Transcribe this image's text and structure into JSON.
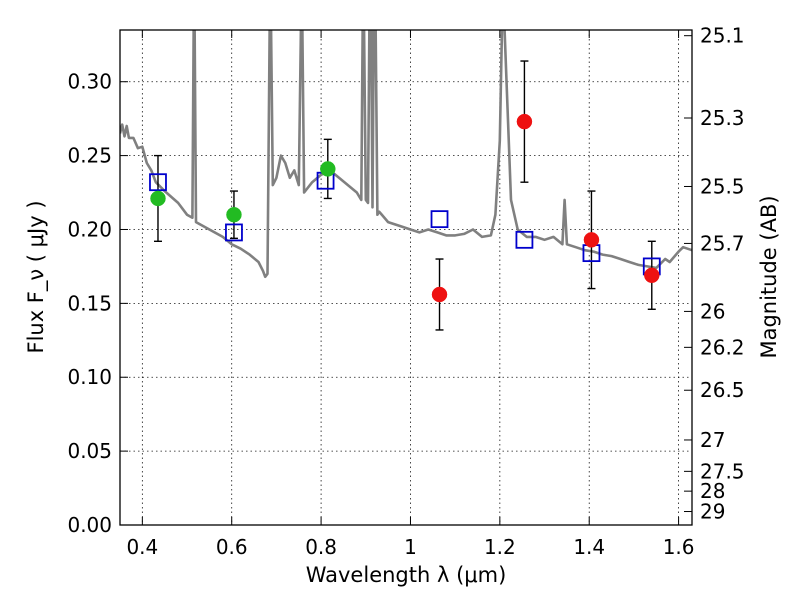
{
  "chart_data": {
    "type": "scatter",
    "xlabel": "Wavelength  λ (μm)",
    "ylabel_left": "Flux  F_ν  ( μJy )",
    "ylabel_right": "Magnitude (AB)",
    "xlim": [
      0.35,
      1.63
    ],
    "ylim": [
      0.0,
      0.335
    ],
    "grid": true,
    "x_ticks": [
      0.4,
      0.6,
      0.8,
      1.0,
      1.2,
      1.4,
      1.6
    ],
    "x_tick_labels": [
      "0.4",
      "0.6",
      "0.8",
      "1",
      "1.2",
      "1.4",
      "1.6"
    ],
    "y_ticks": [
      0.0,
      0.05,
      0.1,
      0.15,
      0.2,
      0.25,
      0.3
    ],
    "y_tick_labels": [
      "0.00",
      "0.05",
      "0.10",
      "0.15",
      "0.20",
      "0.25",
      "0.30"
    ],
    "mag_ticks": [
      25.1,
      25.3,
      25.5,
      25.7,
      26,
      26.2,
      26.5,
      27,
      27.5,
      28,
      29
    ],
    "mag_tick_labels": [
      "25.1",
      "25.3",
      "25.5",
      "25.7",
      "26",
      "26.2",
      "26.5",
      "27",
      "27.5",
      "28",
      "29"
    ],
    "model_spectrum": {
      "color": "#808080",
      "points": [
        [
          0.35,
          0.265
        ],
        [
          0.355,
          0.271
        ],
        [
          0.36,
          0.263
        ],
        [
          0.365,
          0.27
        ],
        [
          0.37,
          0.262
        ],
        [
          0.38,
          0.262
        ],
        [
          0.39,
          0.255
        ],
        [
          0.4,
          0.256
        ],
        [
          0.41,
          0.245
        ],
        [
          0.42,
          0.24
        ],
        [
          0.43,
          0.232
        ],
        [
          0.45,
          0.226
        ],
        [
          0.48,
          0.218
        ],
        [
          0.5,
          0.21
        ],
        [
          0.512,
          0.208
        ],
        [
          0.515,
          0.34
        ],
        [
          0.517,
          0.34
        ],
        [
          0.52,
          0.205
        ],
        [
          0.55,
          0.2
        ],
        [
          0.58,
          0.195
        ],
        [
          0.6,
          0.19
        ],
        [
          0.62,
          0.187
        ],
        [
          0.64,
          0.183
        ],
        [
          0.66,
          0.178
        ],
        [
          0.67,
          0.172
        ],
        [
          0.675,
          0.168
        ],
        [
          0.68,
          0.17
        ],
        [
          0.685,
          0.34
        ],
        [
          0.688,
          0.34
        ],
        [
          0.692,
          0.23
        ],
        [
          0.7,
          0.235
        ],
        [
          0.71,
          0.25
        ],
        [
          0.72,
          0.245
        ],
        [
          0.73,
          0.235
        ],
        [
          0.74,
          0.24
        ],
        [
          0.75,
          0.23
        ],
        [
          0.755,
          0.34
        ],
        [
          0.758,
          0.34
        ],
        [
          0.762,
          0.225
        ],
        [
          0.78,
          0.232
        ],
        [
          0.8,
          0.237
        ],
        [
          0.82,
          0.24
        ],
        [
          0.84,
          0.235
        ],
        [
          0.86,
          0.23
        ],
        [
          0.88,
          0.225
        ],
        [
          0.89,
          0.22
        ],
        [
          0.893,
          0.34
        ],
        [
          0.896,
          0.34
        ],
        [
          0.9,
          0.22
        ],
        [
          0.905,
          0.218
        ],
        [
          0.908,
          0.34
        ],
        [
          0.912,
          0.34
        ],
        [
          0.915,
          0.215
        ],
        [
          0.918,
          0.34
        ],
        [
          0.922,
          0.34
        ],
        [
          0.926,
          0.21
        ],
        [
          0.93,
          0.212
        ],
        [
          0.95,
          0.205
        ],
        [
          0.98,
          0.202
        ],
        [
          1.0,
          0.2
        ],
        [
          1.02,
          0.198
        ],
        [
          1.04,
          0.2
        ],
        [
          1.06,
          0.198
        ],
        [
          1.08,
          0.196
        ],
        [
          1.1,
          0.196
        ],
        [
          1.12,
          0.197
        ],
        [
          1.14,
          0.2
        ],
        [
          1.16,
          0.195
        ],
        [
          1.18,
          0.196
        ],
        [
          1.19,
          0.21
        ],
        [
          1.2,
          0.26
        ],
        [
          1.205,
          0.34
        ],
        [
          1.21,
          0.34
        ],
        [
          1.225,
          0.22
        ],
        [
          1.24,
          0.2
        ],
        [
          1.26,
          0.195
        ],
        [
          1.28,
          0.195
        ],
        [
          1.3,
          0.193
        ],
        [
          1.32,
          0.195
        ],
        [
          1.34,
          0.19
        ],
        [
          1.345,
          0.22
        ],
        [
          1.35,
          0.19
        ],
        [
          1.37,
          0.188
        ],
        [
          1.39,
          0.186
        ],
        [
          1.41,
          0.185
        ],
        [
          1.43,
          0.183
        ],
        [
          1.45,
          0.182
        ],
        [
          1.47,
          0.18
        ],
        [
          1.49,
          0.178
        ],
        [
          1.51,
          0.176
        ],
        [
          1.53,
          0.175
        ],
        [
          1.55,
          0.174
        ],
        [
          1.57,
          0.18
        ],
        [
          1.58,
          0.178
        ],
        [
          1.6,
          0.185
        ],
        [
          1.61,
          0.188
        ],
        [
          1.63,
          0.186
        ]
      ]
    },
    "series": [
      {
        "marker": "open-square",
        "color": "#0000cc",
        "points": [
          {
            "x": 0.435,
            "y": 0.232
          },
          {
            "x": 0.605,
            "y": 0.198
          },
          {
            "x": 0.81,
            "y": 0.233
          },
          {
            "x": 1.065,
            "y": 0.207
          },
          {
            "x": 1.255,
            "y": 0.193
          },
          {
            "x": 1.405,
            "y": 0.184
          },
          {
            "x": 1.54,
            "y": 0.175
          }
        ]
      },
      {
        "marker": "filled-circle",
        "color": "#22bb22",
        "points": [
          {
            "x": 0.435,
            "y": 0.221,
            "err": 0.029
          },
          {
            "x": 0.605,
            "y": 0.21,
            "err": 0.016
          },
          {
            "x": 0.815,
            "y": 0.241,
            "err": 0.02
          }
        ]
      },
      {
        "marker": "filled-circle",
        "color": "#ee1111",
        "points": [
          {
            "x": 1.065,
            "y": 0.156,
            "err": 0.024
          },
          {
            "x": 1.255,
            "y": 0.273,
            "err": 0.041
          },
          {
            "x": 1.405,
            "y": 0.193,
            "err": 0.033
          },
          {
            "x": 1.54,
            "y": 0.169,
            "err": 0.023
          }
        ]
      }
    ]
  }
}
